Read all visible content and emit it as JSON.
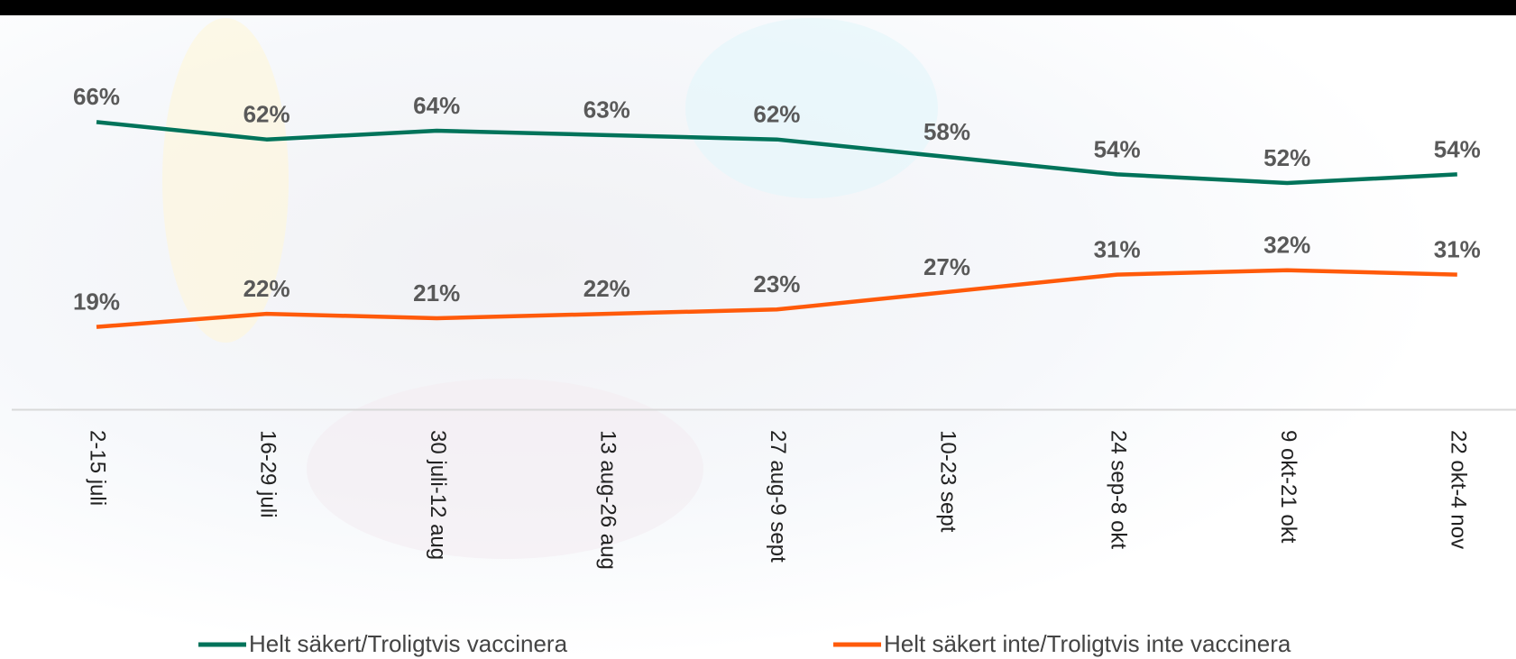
{
  "chart_data": {
    "type": "line",
    "categories": [
      "2-15 juli",
      "16-29 juli",
      "30 juli-12 aug",
      "13 aug-26 aug",
      "27 aug-9 sept",
      "10-23 sept",
      "24 sep-8 okt",
      "9 okt-21 okt",
      "22 okt-4 nov"
    ],
    "series": [
      {
        "name": "Helt säkert/Troligtvis vaccinera",
        "color": "#00735a",
        "values": [
          66,
          62,
          64,
          63,
          62,
          58,
          54,
          52,
          54
        ],
        "value_labels": [
          "66%",
          "62%",
          "64%",
          "63%",
          "62%",
          "58%",
          "54%",
          "52%",
          "54%"
        ]
      },
      {
        "name": "Helt säkert inte/Troligtvis inte vaccinera",
        "color": "#ff5a0a",
        "values": [
          19,
          22,
          21,
          22,
          23,
          27,
          31,
          32,
          31
        ],
        "value_labels": [
          "19%",
          "22%",
          "21%",
          "22%",
          "23%",
          "27%",
          "31%",
          "32%",
          "31%"
        ]
      }
    ],
    "ylim": [
      0,
      90
    ],
    "legend": "bottom"
  }
}
